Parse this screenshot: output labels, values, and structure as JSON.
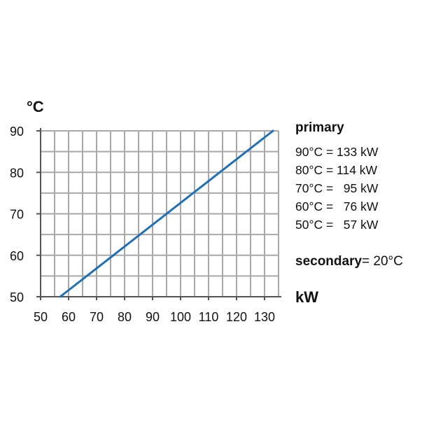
{
  "chart_data": {
    "type": "line",
    "y_unit": "°C",
    "x_unit": "kW",
    "x_ticks": [
      50,
      60,
      70,
      80,
      90,
      100,
      110,
      120,
      130
    ],
    "y_ticks": [
      90,
      80,
      70,
      60,
      50
    ],
    "xlim": [
      50,
      135
    ],
    "ylim": [
      50,
      90
    ],
    "grid": true,
    "series": [
      {
        "points": [
          {
            "x": 57,
            "y": 50
          },
          {
            "x": 133,
            "y": 90
          }
        ],
        "color": "#1f6fb5"
      }
    ]
  },
  "legend": {
    "title": "primary",
    "rows": [
      "90°C = 133 kW",
      "80°C = 114 kW",
      "70°C =   95 kW",
      "60°C =   76 kW",
      "50°C =   57 kW"
    ]
  },
  "secondary": {
    "label": "secondary",
    "value": "= 20°C"
  }
}
